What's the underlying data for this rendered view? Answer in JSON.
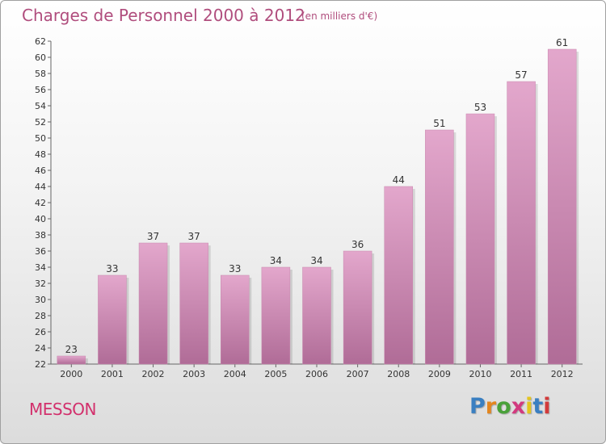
{
  "header": {
    "title": "Charges de Personnel 2000 à 2012",
    "subtitle": "(en milliers d'€)"
  },
  "footer": {
    "commune": "MESSON",
    "logo_text": "Proxiti"
  },
  "colors": {
    "bar_top": "#e3a7cc",
    "bar_bottom": "#b06c97",
    "title": "#b04d7d",
    "commune": "#d2306c"
  },
  "chart_data": {
    "type": "bar",
    "title": "Charges de Personnel 2000 à 2012",
    "subtitle": "(en milliers d'€)",
    "categories": [
      "2000",
      "2001",
      "2002",
      "2003",
      "2004",
      "2005",
      "2006",
      "2007",
      "2008",
      "2009",
      "2010",
      "2011",
      "2012"
    ],
    "values": [
      23,
      33,
      37,
      37,
      33,
      34,
      34,
      36,
      44,
      51,
      53,
      57,
      61
    ],
    "xlabel": "",
    "ylabel": "",
    "ylim": [
      22,
      62
    ],
    "ytick_step": 2,
    "grid": false,
    "data_labels": true
  }
}
